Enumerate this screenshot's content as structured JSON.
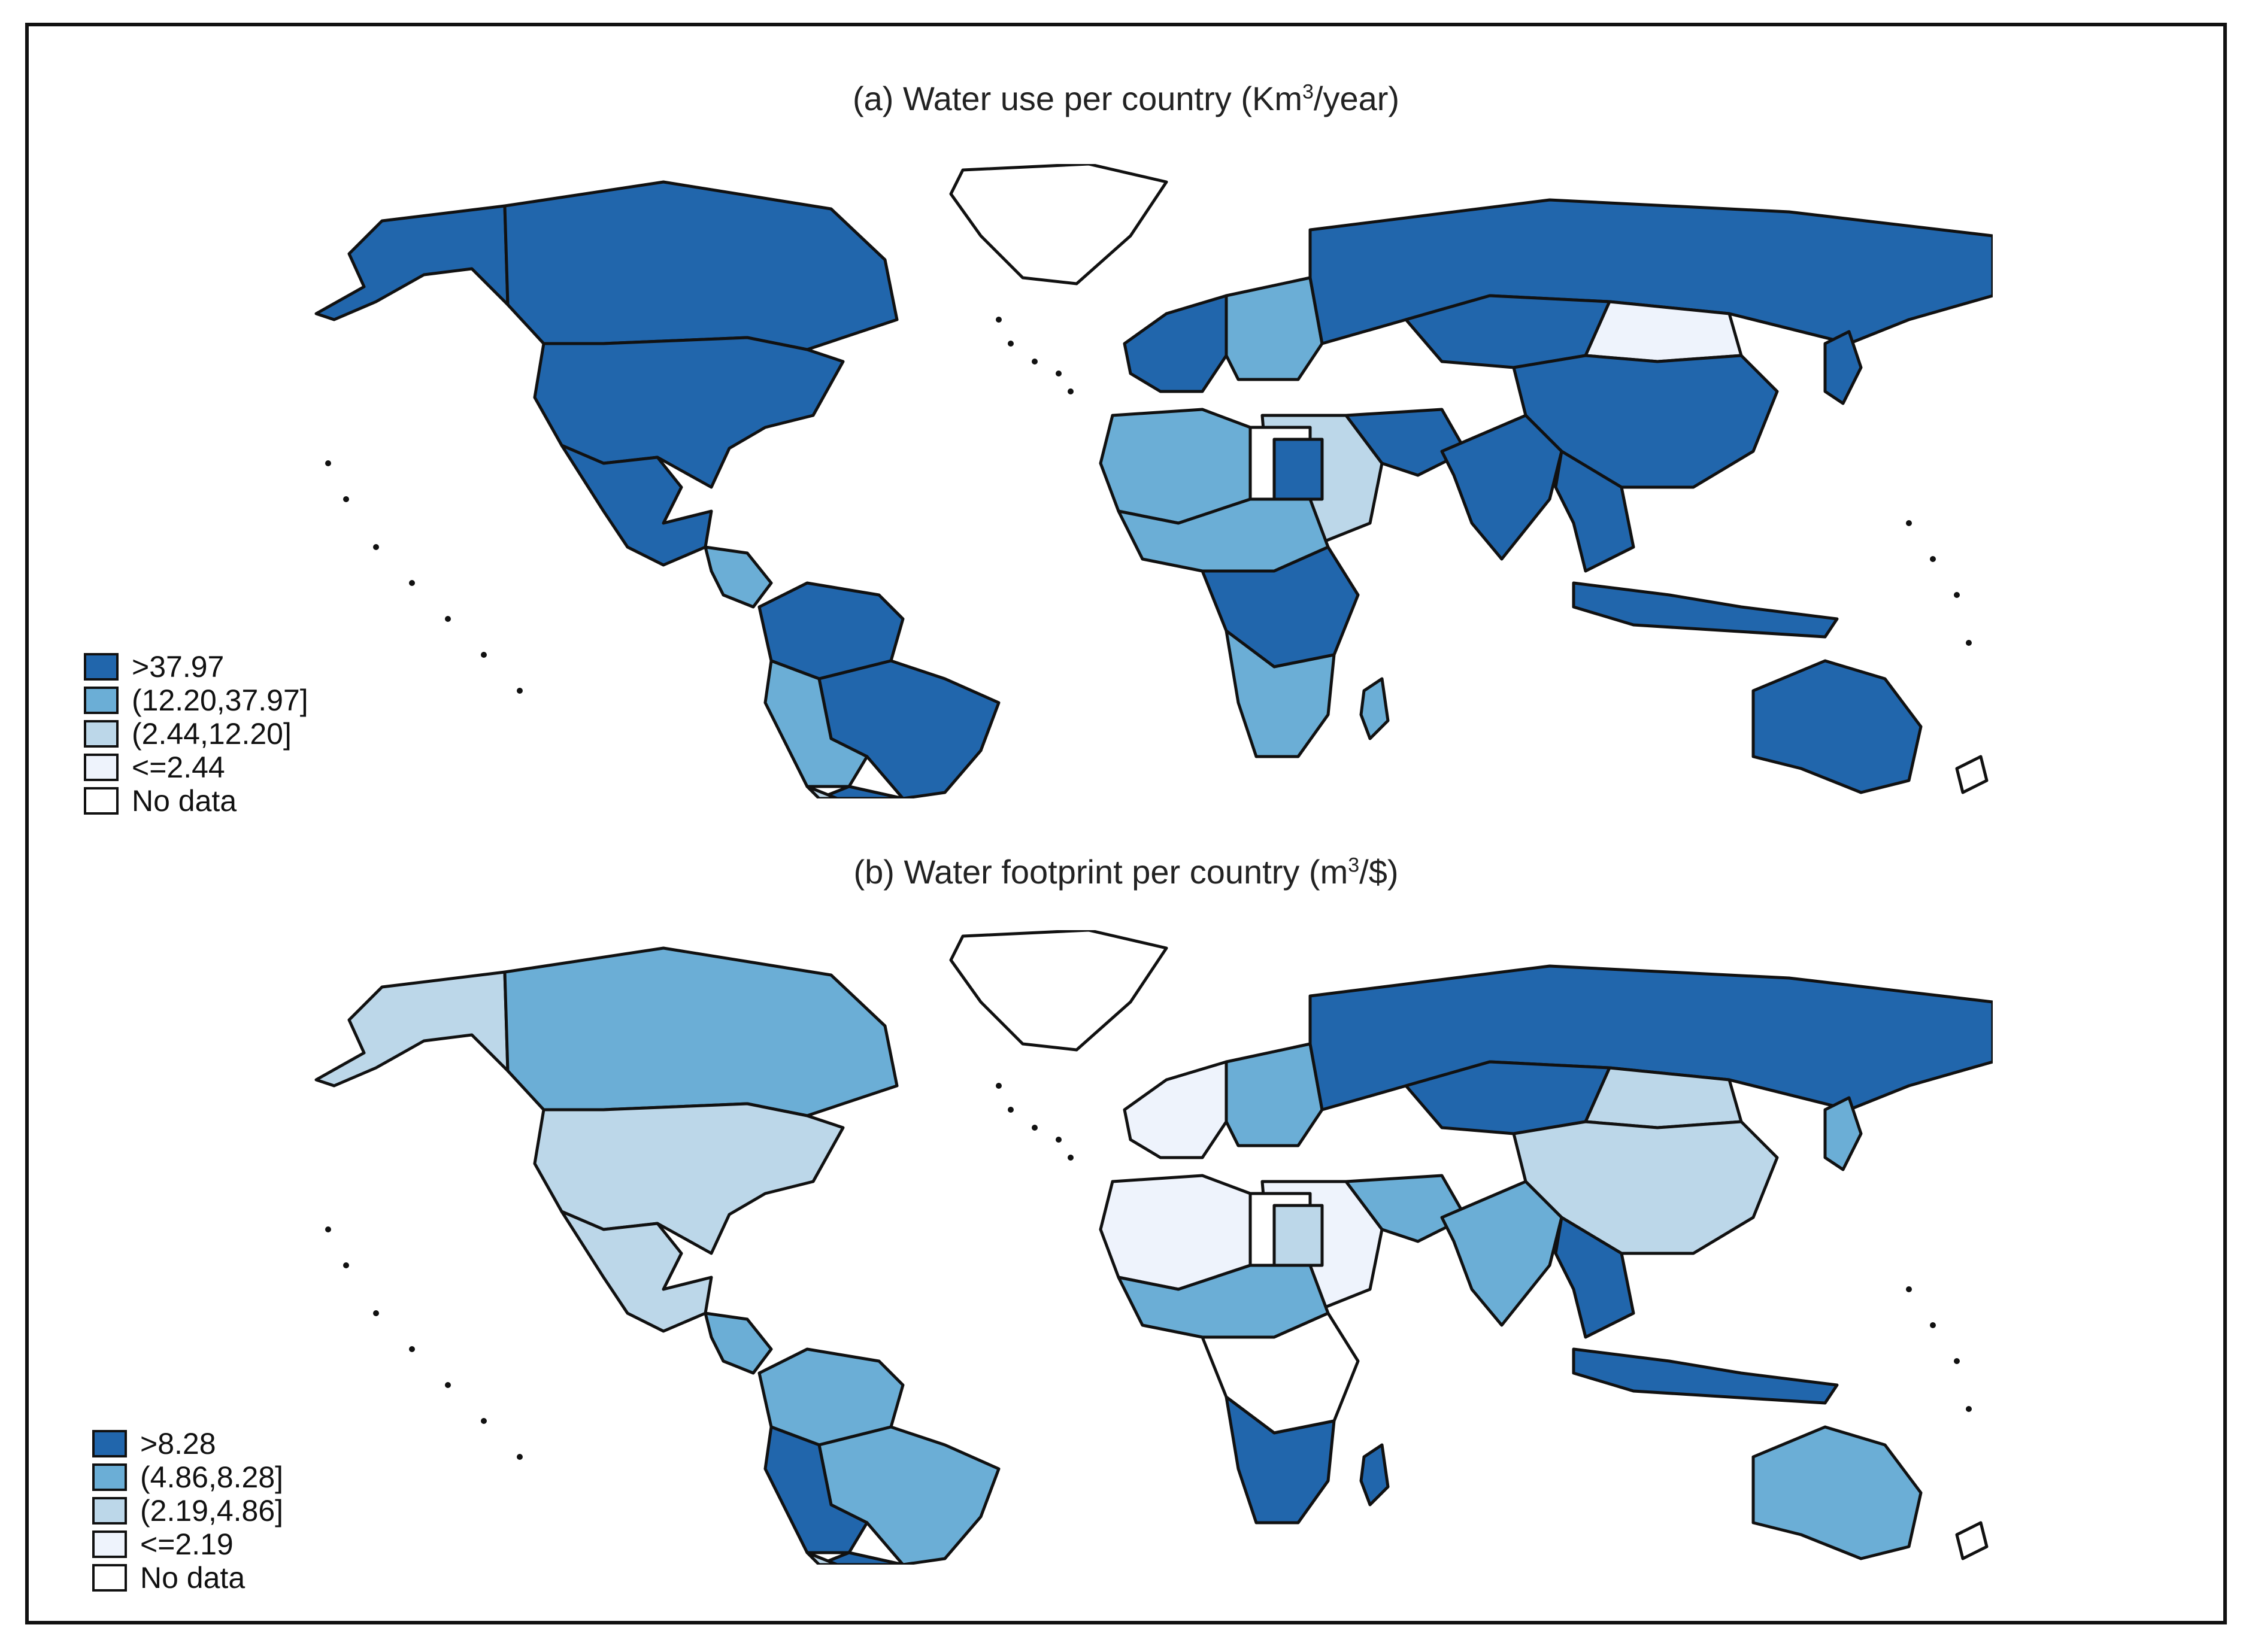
{
  "figure": {
    "panel_a": {
      "title_prefix": "(a) Water use per country (Km",
      "title_sup": "3",
      "title_suffix": "/year)",
      "legend": [
        {
          "label": ">37.97",
          "color": "#2166ac"
        },
        {
          "label": "(12.20,37.97]",
          "color": "#6baed6"
        },
        {
          "label": "(2.44,12.20]",
          "color": "#bcd7e9"
        },
        {
          "label": "<=2.44",
          "color": "#eef3fc"
        },
        {
          "label": "No data",
          "color": "#ffffff"
        }
      ],
      "regions": {
        "north_america_north": "#2166ac",
        "alaska": "#2166ac",
        "usa": "#2166ac",
        "mexico": "#2166ac",
        "greenland": "#ffffff",
        "central_america": "#6baed6",
        "south_america_north": "#2166ac",
        "brazil": "#2166ac",
        "peru_bolivia": "#6baed6",
        "argentina": "#2166ac",
        "chile": "#bcd7e9",
        "europe_west": "#2166ac",
        "europe_east": "#6baed6",
        "russia": "#2166ac",
        "kazakhstan": "#2166ac",
        "mongolia": "#eef3fc",
        "china": "#2166ac",
        "middle_east": "#bcd7e9",
        "iran": "#2166ac",
        "india": "#2166ac",
        "southeast_asia": "#2166ac",
        "indonesia": "#2166ac",
        "north_africa_west": "#6baed6",
        "north_africa_east": "#ffffff",
        "egypt": "#2166ac",
        "sahel": "#6baed6",
        "central_africa": "#2166ac",
        "southern_africa": "#6baed6",
        "madagascar": "#6baed6",
        "australia": "#2166ac",
        "japan": "#2166ac",
        "new_zealand": "#ffffff"
      }
    },
    "panel_b": {
      "title_prefix": "(b) Water footprint per country (m",
      "title_sup": "3",
      "title_suffix": "/$)",
      "legend": [
        {
          "label": ">8.28",
          "color": "#2166ac"
        },
        {
          "label": "(4.86,8.28]",
          "color": "#6baed6"
        },
        {
          "label": "(2.19,4.86]",
          "color": "#bcd7e9"
        },
        {
          "label": "<=2.19",
          "color": "#eef3fc"
        },
        {
          "label": "No data",
          "color": "#ffffff"
        }
      ],
      "regions": {
        "north_america_north": "#6baed6",
        "alaska": "#bcd7e9",
        "usa": "#bcd7e9",
        "mexico": "#bcd7e9",
        "greenland": "#ffffff",
        "central_america": "#6baed6",
        "south_america_north": "#6baed6",
        "brazil": "#6baed6",
        "peru_bolivia": "#2166ac",
        "argentina": "#2166ac",
        "chile": "#bcd7e9",
        "europe_west": "#eef3fc",
        "europe_east": "#6baed6",
        "russia": "#2166ac",
        "kazakhstan": "#2166ac",
        "mongolia": "#bcd7e9",
        "china": "#bcd7e9",
        "middle_east": "#eef3fc",
        "iran": "#6baed6",
        "india": "#6baed6",
        "southeast_asia": "#2166ac",
        "indonesia": "#2166ac",
        "north_africa_west": "#eef3fc",
        "north_africa_east": "#ffffff",
        "egypt": "#bcd7e9",
        "sahel": "#6baed6",
        "central_africa": "#ffffff",
        "southern_africa": "#2166ac",
        "madagascar": "#2166ac",
        "australia": "#6baed6",
        "japan": "#6baed6",
        "new_zealand": "#ffffff"
      }
    }
  }
}
